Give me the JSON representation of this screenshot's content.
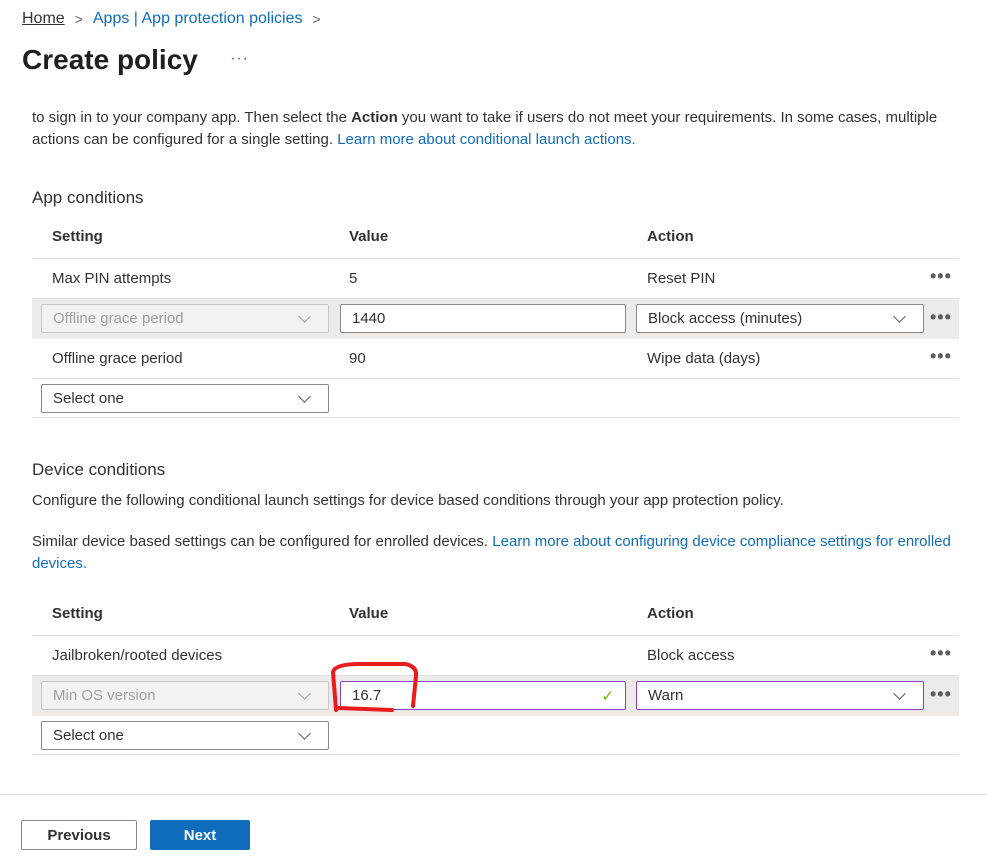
{
  "breadcrumb": {
    "home": "Home",
    "apps": "Apps | App protection policies"
  },
  "page": {
    "title": "Create policy",
    "more": "···"
  },
  "intro": {
    "text_before": "to sign in to your company app. Then select the ",
    "bold": "Action",
    "text_after": " you want to take if users do not meet your requirements. In some cases, multiple actions can be configured for a single setting. ",
    "link": "Learn more about conditional launch actions."
  },
  "app_conditions": {
    "title": "App conditions",
    "headers": {
      "setting": "Setting",
      "value": "Value",
      "action": "Action"
    },
    "rows": [
      {
        "setting": "Max PIN attempts",
        "value": "5",
        "action": "Reset PIN"
      },
      {
        "setting": "Offline grace period",
        "value": "1440",
        "action": "Block access (minutes)"
      },
      {
        "setting": "Offline grace period",
        "value": "90",
        "action": "Wipe data (days)"
      }
    ],
    "select_placeholder": "Select one"
  },
  "device_conditions": {
    "title": "Device conditions",
    "desc": "Configure the following conditional launch settings for device based conditions through your app protection policy.",
    "note": "Similar device based settings can be configured for enrolled devices. ",
    "note_link": "Learn more about configuring device compliance settings for enrolled devices.",
    "headers": {
      "setting": "Setting",
      "value": "Value",
      "action": "Action"
    },
    "rows": [
      {
        "setting": "Jailbroken/rooted devices",
        "value": "",
        "action": "Block access"
      },
      {
        "setting": "Min OS version",
        "value": "16.7",
        "action": "Warn"
      }
    ],
    "select_placeholder": "Select one"
  },
  "footer": {
    "previous": "Previous",
    "next": "Next"
  },
  "colors": {
    "accent": "#0f6cbd",
    "annotation": "#e81c1c"
  }
}
